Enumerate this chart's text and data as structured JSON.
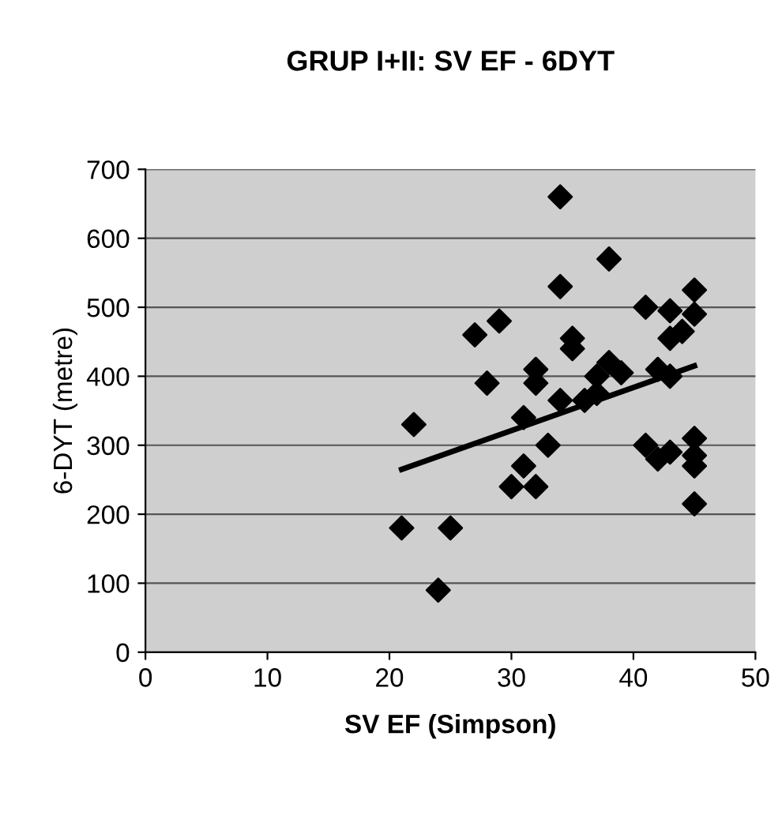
{
  "chart_data": {
    "type": "scatter",
    "title": "GRUP I+II: SV EF - 6DYT",
    "xlabel": "SV EF (Simpson)",
    "ylabel": "6-DYT (metre)",
    "xlim": [
      0,
      50
    ],
    "xticks": [
      0,
      10,
      20,
      30,
      40,
      50
    ],
    "ylim": [
      0,
      700
    ],
    "yticks": [
      0,
      100,
      200,
      300,
      400,
      500,
      600,
      700
    ],
    "grid": "y",
    "marker": "diamond",
    "legend": false,
    "series": [
      {
        "color": "#000000",
        "x": [
          21,
          22,
          24,
          25,
          27,
          28,
          29,
          30,
          31,
          31,
          32,
          32,
          32,
          33,
          34,
          34,
          34,
          35,
          35,
          36,
          37,
          37,
          38,
          38,
          39,
          41,
          41,
          42,
          42,
          43,
          43,
          43,
          43,
          44,
          45,
          45,
          45,
          45,
          45,
          45
        ],
        "values": [
          180,
          330,
          90,
          180,
          460,
          390,
          480,
          240,
          270,
          340,
          240,
          410,
          390,
          300,
          660,
          530,
          365,
          455,
          440,
          365,
          375,
          400,
          420,
          570,
          405,
          500,
          300,
          280,
          410,
          495,
          455,
          400,
          290,
          465,
          525,
          490,
          310,
          285,
          270,
          215
        ]
      },
      {
        "type": "line",
        "color": "#000000",
        "marker": "none",
        "line_style": "solid",
        "x": [
          21,
          45
        ],
        "values": [
          265,
          415
        ]
      }
    ]
  }
}
